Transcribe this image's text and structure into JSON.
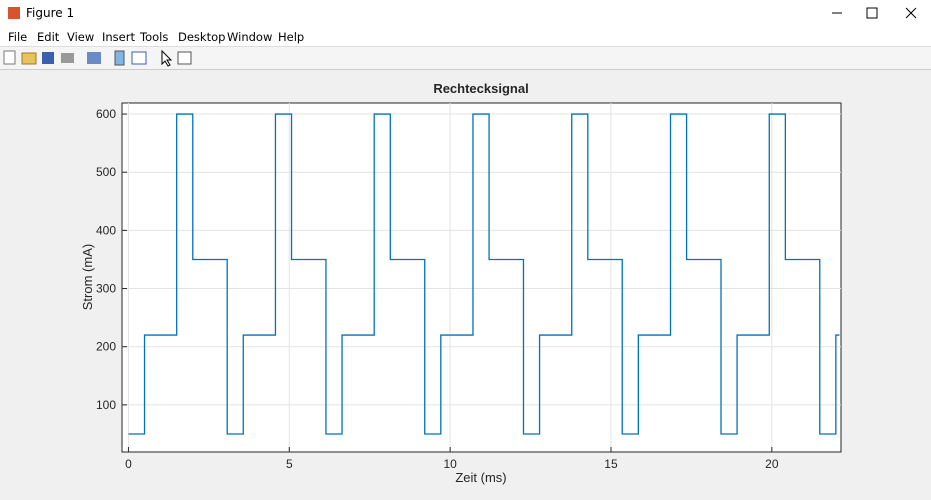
{
  "window": {
    "title": "Figure 1",
    "menu": [
      "File",
      "Edit",
      "View",
      "Insert",
      "Tools",
      "Desktop",
      "Window",
      "Help"
    ]
  },
  "chart_data": {
    "type": "line",
    "title": "Rechtecksignal",
    "x_label": "Zeit (ms)",
    "y_label": "Strom (mA)",
    "x": [
      0,
      0.5,
      0.5,
      1.5,
      1.5,
      2,
      2,
      3.07,
      3.07,
      3.57,
      3.57,
      4.57,
      4.57,
      5.07,
      5.07,
      6.14,
      6.14,
      6.64,
      6.64,
      7.64,
      7.64,
      8.14,
      8.14,
      9.21,
      9.21,
      9.71,
      9.71,
      10.71,
      10.71,
      11.21,
      11.21,
      12.28,
      12.28,
      12.78,
      12.78,
      13.78,
      13.78,
      14.28,
      14.28,
      15.35,
      15.35,
      15.85,
      15.85,
      16.85,
      16.85,
      17.35,
      17.35,
      18.42,
      18.42,
      18.92,
      18.92,
      19.92,
      19.92,
      20.42,
      20.42,
      21.49,
      21.49,
      21.99,
      21.99,
      22.1
    ],
    "values": [
      50,
      50,
      220,
      220,
      600,
      600,
      350,
      350,
      50,
      50,
      220,
      220,
      600,
      600,
      350,
      350,
      50,
      50,
      220,
      220,
      600,
      600,
      350,
      350,
      50,
      50,
      220,
      220,
      600,
      600,
      350,
      350,
      50,
      50,
      220,
      220,
      600,
      600,
      350,
      350,
      50,
      50,
      220,
      220,
      600,
      600,
      350,
      350,
      50,
      50,
      220,
      220,
      600,
      600,
      350,
      350,
      50,
      50,
      220,
      220
    ],
    "color": "#0072bd",
    "xlim": [
      -0.2,
      22.15
    ],
    "ylim": [
      19,
      619
    ],
    "xticks": [
      0,
      5,
      10,
      15,
      20
    ],
    "yticks": [
      100,
      200,
      300,
      400,
      500,
      600
    ],
    "grid": true
  }
}
